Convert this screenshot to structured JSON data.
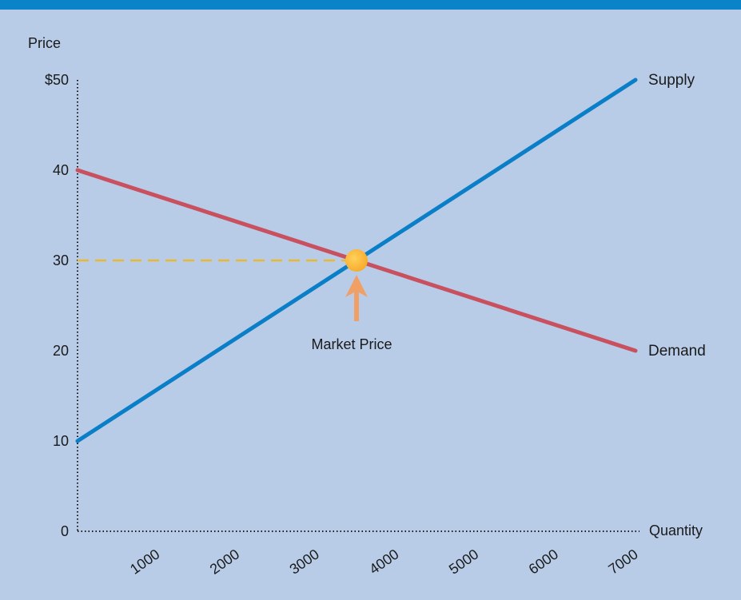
{
  "colors": {
    "background": "#b8cce8",
    "top_bar": "#0a83c9",
    "supply": "#0a7fc7",
    "demand": "#c8505f",
    "guide": "#e8b830",
    "market_point": "#f7a92a",
    "arrow": "#f0a065",
    "axis": "#1a1a1a"
  },
  "chart_data": {
    "type": "line",
    "title": "",
    "xlabel": "Quantity",
    "ylabel": "Price",
    "xlim": [
      0,
      7000
    ],
    "ylim": [
      0,
      50
    ],
    "x_ticks": [
      1000,
      2000,
      3000,
      4000,
      5000,
      6000,
      7000
    ],
    "x_tick_labels": [
      "1000",
      "2000",
      "3000",
      "4000",
      "5000",
      "6000",
      "7000"
    ],
    "y_ticks": [
      0,
      10,
      20,
      30,
      40,
      50
    ],
    "y_tick_labels": [
      "0",
      "10",
      "20",
      "30",
      "40",
      "$50"
    ],
    "grid": false,
    "series": [
      {
        "name": "Supply",
        "color": "#0a7fc7",
        "points": [
          [
            0,
            10
          ],
          [
            7000,
            50
          ]
        ]
      },
      {
        "name": "Demand",
        "color": "#c8505f",
        "points": [
          [
            0,
            40
          ],
          [
            7000,
            20
          ]
        ]
      }
    ],
    "annotations": [
      {
        "label": "Market Price",
        "x": 3500,
        "y": 30,
        "style": "point-with-dashed-guide-to-y-axis"
      }
    ]
  }
}
